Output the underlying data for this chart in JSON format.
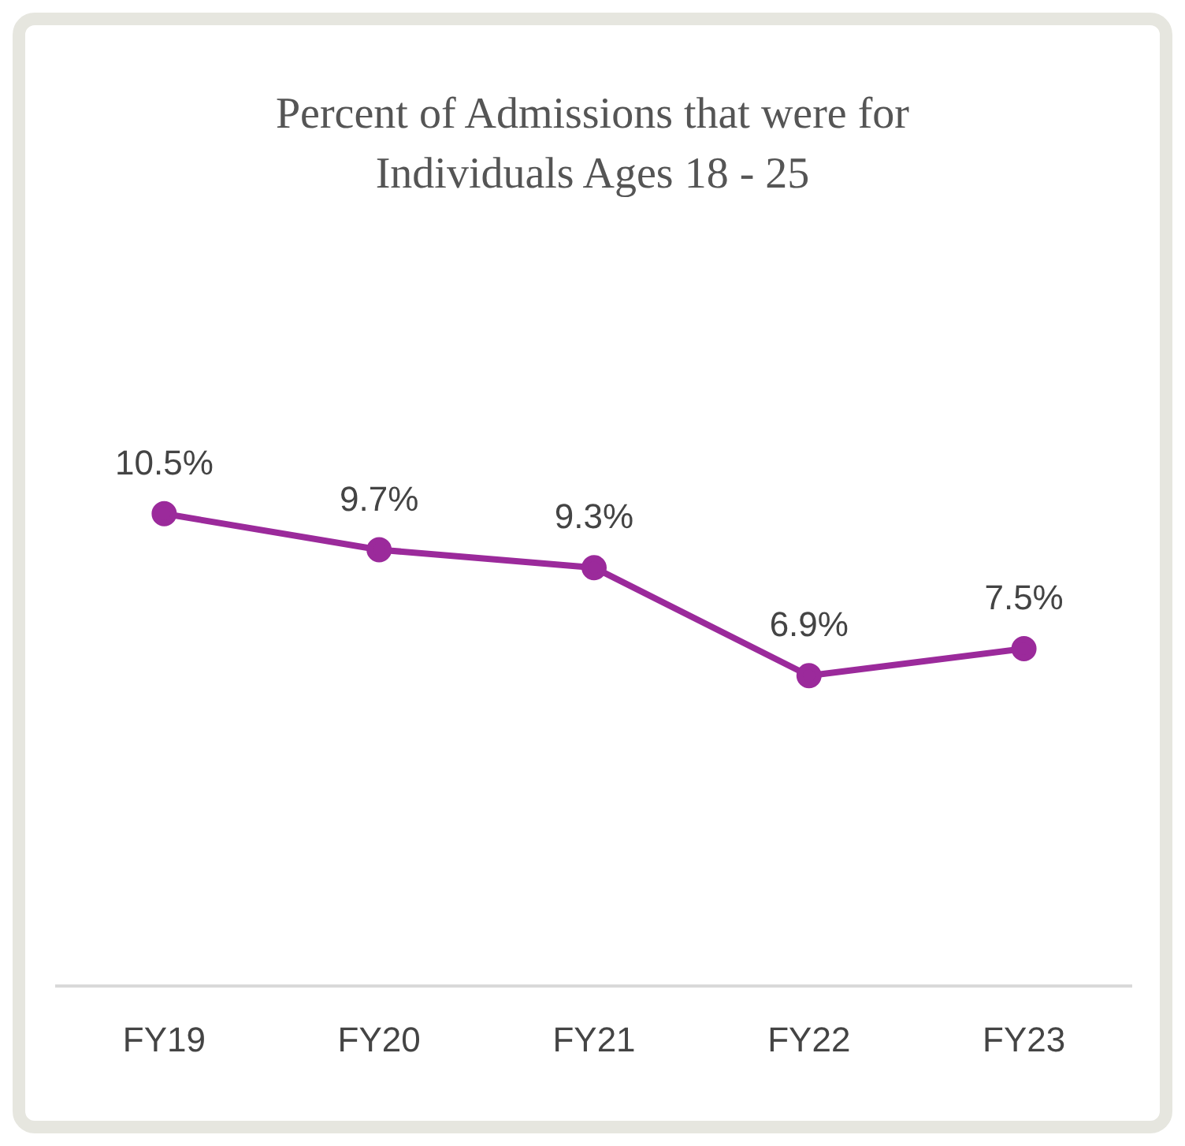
{
  "chart_data": {
    "type": "line",
    "title": "Percent of Admissions that were for Individuals Ages 18 - 25",
    "categories": [
      "FY19",
      "FY20",
      "FY21",
      "FY22",
      "FY23"
    ],
    "values": [
      10.5,
      9.7,
      9.3,
      6.9,
      7.5
    ],
    "value_labels": [
      "10.5%",
      "9.7%",
      "9.3%",
      "6.9%",
      "7.5%"
    ],
    "color": "#9b2a9b",
    "marker": "circle",
    "line_style": "solid",
    "tick_labels": "x"
  }
}
